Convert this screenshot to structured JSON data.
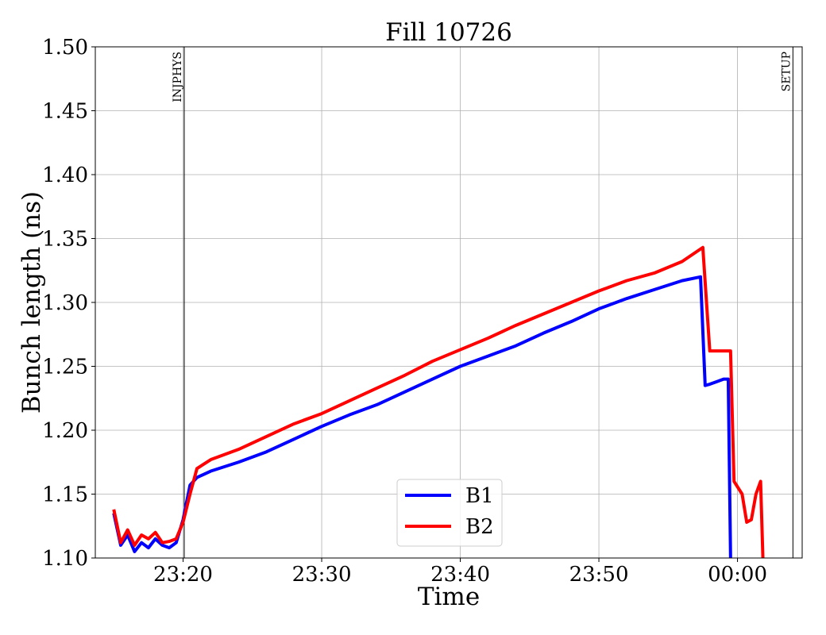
{
  "chart_data": {
    "type": "line",
    "title": "Fill 10726",
    "xlabel": "Time",
    "ylabel": "Bunch length (ns)",
    "ylim": [
      1.1,
      1.5
    ],
    "xlim": [
      "23:13:40",
      "00:04:40"
    ],
    "grid": true,
    "legend_position": "bottom-center",
    "x_ticks": [
      "23:20",
      "23:30",
      "23:40",
      "23:50",
      "00:00"
    ],
    "y_ticks": [
      "1.10",
      "1.15",
      "1.20",
      "1.25",
      "1.30",
      "1.35",
      "1.40",
      "1.45",
      "1.50"
    ],
    "markers": [
      {
        "time": "23:20:05",
        "label": "INJPHYS"
      },
      {
        "time": "00:04:00",
        "label": "SETUP"
      }
    ],
    "series": [
      {
        "name": "B1",
        "color": "#0000ff",
        "points": [
          [
            "23:15:00",
            1.135
          ],
          [
            "23:15:30",
            1.11
          ],
          [
            "23:16:00",
            1.118
          ],
          [
            "23:16:30",
            1.105
          ],
          [
            "23:17:00",
            1.112
          ],
          [
            "23:17:30",
            1.108
          ],
          [
            "23:18:00",
            1.115
          ],
          [
            "23:18:30",
            1.11
          ],
          [
            "23:19:00",
            1.108
          ],
          [
            "23:19:30",
            1.112
          ],
          [
            "23:20:00",
            1.13
          ],
          [
            "23:20:30",
            1.157
          ],
          [
            "23:21:00",
            1.163
          ],
          [
            "23:22:00",
            1.168
          ],
          [
            "23:24:00",
            1.175
          ],
          [
            "23:26:00",
            1.183
          ],
          [
            "23:28:00",
            1.193
          ],
          [
            "23:30:00",
            1.203
          ],
          [
            "23:32:00",
            1.212
          ],
          [
            "23:34:00",
            1.22
          ],
          [
            "23:36:00",
            1.23
          ],
          [
            "23:38:00",
            1.24
          ],
          [
            "23:40:00",
            1.25
          ],
          [
            "23:42:00",
            1.258
          ],
          [
            "23:44:00",
            1.266
          ],
          [
            "23:46:00",
            1.276
          ],
          [
            "23:48:00",
            1.285
          ],
          [
            "23:50:00",
            1.295
          ],
          [
            "23:52:00",
            1.303
          ],
          [
            "23:54:00",
            1.31
          ],
          [
            "23:56:00",
            1.317
          ],
          [
            "23:57:20",
            1.32
          ],
          [
            "23:57:40",
            1.235
          ],
          [
            "23:58:00",
            1.236
          ],
          [
            "23:58:30",
            1.238
          ],
          [
            "23:59:00",
            1.24
          ],
          [
            "23:59:20",
            1.24
          ],
          [
            "23:59:30",
            1.1
          ]
        ]
      },
      {
        "name": "B2",
        "color": "#ff0000",
        "points": [
          [
            "23:15:00",
            1.138
          ],
          [
            "23:15:30",
            1.112
          ],
          [
            "23:16:00",
            1.122
          ],
          [
            "23:16:30",
            1.11
          ],
          [
            "23:17:00",
            1.118
          ],
          [
            "23:17:30",
            1.115
          ],
          [
            "23:18:00",
            1.12
          ],
          [
            "23:18:30",
            1.112
          ],
          [
            "23:19:00",
            1.113
          ],
          [
            "23:19:30",
            1.115
          ],
          [
            "23:20:00",
            1.128
          ],
          [
            "23:20:30",
            1.15
          ],
          [
            "23:21:00",
            1.17
          ],
          [
            "23:22:00",
            1.177
          ],
          [
            "23:24:00",
            1.185
          ],
          [
            "23:26:00",
            1.195
          ],
          [
            "23:28:00",
            1.205
          ],
          [
            "23:30:00",
            1.213
          ],
          [
            "23:32:00",
            1.223
          ],
          [
            "23:34:00",
            1.233
          ],
          [
            "23:36:00",
            1.243
          ],
          [
            "23:38:00",
            1.254
          ],
          [
            "23:40:00",
            1.263
          ],
          [
            "23:42:00",
            1.272
          ],
          [
            "23:44:00",
            1.282
          ],
          [
            "23:46:00",
            1.291
          ],
          [
            "23:48:00",
            1.3
          ],
          [
            "23:50:00",
            1.309
          ],
          [
            "23:52:00",
            1.317
          ],
          [
            "23:54:00",
            1.323
          ],
          [
            "23:56:00",
            1.332
          ],
          [
            "23:57:30",
            1.343
          ],
          [
            "23:58:00",
            1.262
          ],
          [
            "23:58:30",
            1.262
          ],
          [
            "23:59:00",
            1.262
          ],
          [
            "23:59:30",
            1.262
          ],
          [
            "23:59:45",
            1.16
          ],
          [
            "00:00:20",
            1.15
          ],
          [
            "00:00:40",
            1.128
          ],
          [
            "00:01:00",
            1.13
          ],
          [
            "00:01:20",
            1.15
          ],
          [
            "00:01:40",
            1.16
          ],
          [
            "00:01:50",
            1.1
          ]
        ]
      }
    ]
  }
}
